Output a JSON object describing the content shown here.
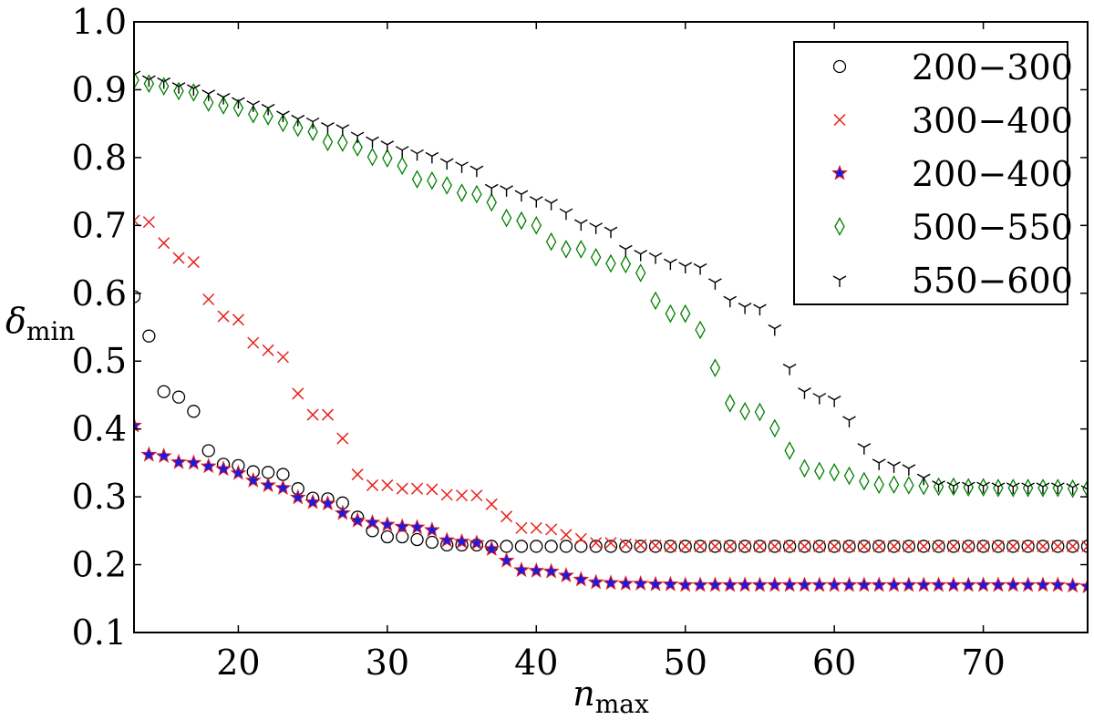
{
  "chart_data": {
    "type": "scatter",
    "xlabel": {
      "main": "n",
      "sub": "max"
    },
    "ylabel": {
      "main": "δ",
      "sub": "min"
    },
    "xlim": [
      13,
      77
    ],
    "ylim": [
      0.1,
      1.0
    ],
    "xticks": [
      20,
      30,
      40,
      50,
      60,
      70
    ],
    "yticks": [
      0.1,
      0.2,
      0.3,
      0.4,
      0.5,
      0.6,
      0.7,
      0.8,
      0.9,
      1.0
    ],
    "xtick_labels": [
      "20",
      "30",
      "40",
      "50",
      "60",
      "70"
    ],
    "ytick_labels": [
      "0.1",
      "0.2",
      "0.3",
      "0.4",
      "0.5",
      "0.6",
      "0.7",
      "0.8",
      "0.9",
      "1.0"
    ],
    "grid": false,
    "legend_position": "top-right",
    "series": [
      {
        "name": "200−300",
        "marker": "circle",
        "color": "#000000",
        "x": [
          13,
          14,
          15,
          16,
          17,
          18,
          19,
          20,
          21,
          22,
          23,
          24,
          25,
          26,
          27,
          28,
          29,
          30,
          31,
          32,
          33,
          34,
          35,
          36,
          37,
          38,
          39,
          40,
          41,
          42,
          43,
          44,
          45,
          46,
          47,
          48,
          49,
          50,
          51,
          52,
          53,
          54,
          55,
          56,
          57,
          58,
          59,
          60,
          61,
          62,
          63,
          64,
          65,
          66,
          67,
          68,
          69,
          70,
          71,
          72,
          73,
          74,
          75,
          76,
          77
        ],
        "y": [
          0.595,
          0.537,
          0.455,
          0.447,
          0.426,
          0.368,
          0.348,
          0.346,
          0.337,
          0.336,
          0.333,
          0.312,
          0.298,
          0.297,
          0.291,
          0.27,
          0.25,
          0.241,
          0.241,
          0.237,
          0.233,
          0.229,
          0.229,
          0.229,
          0.227,
          0.227,
          0.227,
          0.227,
          0.227,
          0.227,
          0.227,
          0.227,
          0.227,
          0.227,
          0.227,
          0.227,
          0.227,
          0.227,
          0.227,
          0.227,
          0.227,
          0.227,
          0.227,
          0.227,
          0.227,
          0.227,
          0.227,
          0.227,
          0.227,
          0.227,
          0.227,
          0.227,
          0.227,
          0.227,
          0.227,
          0.227,
          0.227,
          0.227,
          0.227,
          0.227,
          0.227,
          0.227,
          0.227,
          0.227,
          0.227
        ]
      },
      {
        "name": "300−400",
        "marker": "x",
        "color": "#e8211b",
        "x": [
          13,
          14,
          15,
          16,
          17,
          18,
          19,
          20,
          21,
          22,
          23,
          24,
          25,
          26,
          27,
          28,
          29,
          30,
          31,
          32,
          33,
          34,
          35,
          36,
          37,
          38,
          39,
          40,
          41,
          42,
          43,
          44,
          45,
          46,
          47,
          48,
          49,
          50,
          51,
          52,
          53,
          54,
          55,
          56,
          57,
          58,
          59,
          60,
          61,
          62,
          63,
          64,
          65,
          66,
          67,
          68,
          69,
          70,
          71,
          72,
          73,
          74,
          75,
          76,
          77
        ],
        "y": [
          0.707,
          0.705,
          0.674,
          0.652,
          0.646,
          0.591,
          0.566,
          0.561,
          0.527,
          0.516,
          0.506,
          0.452,
          0.421,
          0.421,
          0.386,
          0.333,
          0.317,
          0.317,
          0.312,
          0.312,
          0.311,
          0.303,
          0.302,
          0.302,
          0.289,
          0.271,
          0.254,
          0.254,
          0.252,
          0.244,
          0.238,
          0.232,
          0.232,
          0.23,
          0.229,
          0.228,
          0.227,
          0.227,
          0.227,
          0.227,
          0.227,
          0.227,
          0.227,
          0.227,
          0.227,
          0.227,
          0.227,
          0.227,
          0.227,
          0.227,
          0.227,
          0.227,
          0.227,
          0.227,
          0.227,
          0.227,
          0.227,
          0.227,
          0.227,
          0.227,
          0.227,
          0.227,
          0.227,
          0.227,
          0.227
        ]
      },
      {
        "name": "200−400",
        "marker": "star",
        "color": "#1a1ae6",
        "edgecolor": "#e8211b",
        "x": [
          13,
          14,
          15,
          16,
          17,
          18,
          19,
          20,
          21,
          22,
          23,
          24,
          25,
          26,
          27,
          28,
          29,
          30,
          31,
          32,
          33,
          34,
          35,
          36,
          37,
          38,
          39,
          40,
          41,
          42,
          43,
          44,
          45,
          46,
          47,
          48,
          49,
          50,
          51,
          52,
          53,
          54,
          55,
          56,
          57,
          58,
          59,
          60,
          61,
          62,
          63,
          64,
          65,
          66,
          67,
          68,
          69,
          70,
          71,
          72,
          73,
          74,
          75,
          76,
          77
        ],
        "y": [
          0.405,
          0.362,
          0.36,
          0.351,
          0.35,
          0.345,
          0.341,
          0.335,
          0.324,
          0.317,
          0.313,
          0.299,
          0.292,
          0.29,
          0.276,
          0.265,
          0.262,
          0.259,
          0.256,
          0.255,
          0.251,
          0.236,
          0.234,
          0.232,
          0.223,
          0.206,
          0.192,
          0.191,
          0.19,
          0.184,
          0.178,
          0.174,
          0.173,
          0.172,
          0.172,
          0.171,
          0.171,
          0.17,
          0.17,
          0.17,
          0.17,
          0.17,
          0.17,
          0.17,
          0.17,
          0.17,
          0.17,
          0.17,
          0.17,
          0.17,
          0.17,
          0.17,
          0.17,
          0.17,
          0.17,
          0.17,
          0.17,
          0.17,
          0.17,
          0.17,
          0.17,
          0.17,
          0.17,
          0.169,
          0.168
        ]
      },
      {
        "name": "500−550",
        "marker": "diamond",
        "color": "#008000",
        "x": [
          13,
          14,
          15,
          16,
          17,
          18,
          19,
          20,
          21,
          22,
          23,
          24,
          25,
          26,
          27,
          28,
          29,
          30,
          31,
          32,
          33,
          34,
          35,
          36,
          37,
          38,
          39,
          40,
          41,
          42,
          43,
          44,
          45,
          46,
          47,
          48,
          49,
          50,
          51,
          52,
          53,
          54,
          55,
          56,
          57,
          58,
          59,
          60,
          61,
          62,
          63,
          64,
          65,
          66,
          67,
          68,
          69,
          70,
          71,
          72,
          73,
          74,
          75,
          76,
          77
        ],
        "y": [
          0.914,
          0.909,
          0.905,
          0.898,
          0.896,
          0.881,
          0.877,
          0.873,
          0.864,
          0.861,
          0.851,
          0.844,
          0.838,
          0.823,
          0.822,
          0.815,
          0.801,
          0.799,
          0.788,
          0.768,
          0.766,
          0.759,
          0.748,
          0.746,
          0.734,
          0.711,
          0.707,
          0.7,
          0.676,
          0.665,
          0.665,
          0.653,
          0.644,
          0.643,
          0.63,
          0.589,
          0.57,
          0.57,
          0.546,
          0.49,
          0.438,
          0.426,
          0.425,
          0.401,
          0.368,
          0.342,
          0.338,
          0.336,
          0.331,
          0.323,
          0.318,
          0.318,
          0.317,
          0.316,
          0.315,
          0.315,
          0.314,
          0.314,
          0.313,
          0.313,
          0.313,
          0.313,
          0.313,
          0.312,
          0.312
        ]
      },
      {
        "name": "550−600",
        "marker": "tri_down",
        "color": "#000000",
        "x": [
          13,
          14,
          15,
          16,
          17,
          18,
          19,
          20,
          21,
          22,
          23,
          24,
          25,
          26,
          27,
          28,
          29,
          30,
          31,
          32,
          33,
          34,
          35,
          36,
          37,
          38,
          39,
          40,
          41,
          42,
          43,
          44,
          45,
          46,
          47,
          48,
          49,
          50,
          51,
          52,
          53,
          54,
          55,
          56,
          57,
          58,
          59,
          60,
          61,
          62,
          63,
          64,
          65,
          66,
          67,
          68,
          69,
          70,
          71,
          72,
          73,
          74,
          75,
          76,
          77
        ],
        "y": [
          0.922,
          0.915,
          0.912,
          0.905,
          0.902,
          0.894,
          0.889,
          0.883,
          0.878,
          0.873,
          0.863,
          0.857,
          0.853,
          0.846,
          0.843,
          0.832,
          0.825,
          0.819,
          0.811,
          0.806,
          0.802,
          0.793,
          0.788,
          0.782,
          0.755,
          0.753,
          0.746,
          0.737,
          0.733,
          0.719,
          0.703,
          0.698,
          0.692,
          0.665,
          0.658,
          0.654,
          0.645,
          0.64,
          0.638,
          0.616,
          0.59,
          0.58,
          0.578,
          0.548,
          0.49,
          0.455,
          0.447,
          0.443,
          0.413,
          0.373,
          0.35,
          0.346,
          0.342,
          0.328,
          0.318,
          0.316,
          0.316,
          0.316,
          0.315,
          0.315,
          0.315,
          0.315,
          0.315,
          0.314,
          0.311
        ]
      }
    ]
  }
}
